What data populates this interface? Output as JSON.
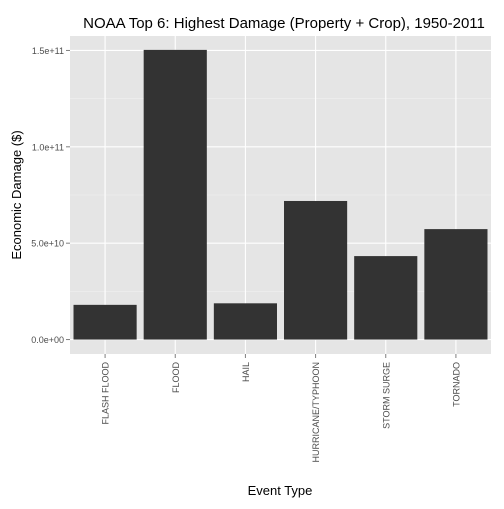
{
  "chart_data": {
    "type": "bar",
    "title": "NOAA Top 6: Highest Damage (Property + Crop), 1950-2011",
    "xlabel": "Event Type",
    "ylabel": "Economic Damage ($)",
    "categories": [
      "FLASH FLOOD",
      "FLOOD",
      "HAIL",
      "HURRICANE/TYPHOON",
      "STORM SURGE",
      "TORNADO"
    ],
    "values": [
      18000000000,
      150300000000,
      18800000000,
      71900000000,
      43300000000,
      57300000000
    ],
    "ylim": [
      -7500000000,
      157500000000
    ],
    "yticks": [
      0,
      50000000000,
      100000000000,
      150000000000
    ],
    "ytick_labels": [
      "0.0e+00",
      "5.0e+10",
      "1.0e+11",
      "1.5e+11"
    ],
    "grid": true,
    "colors": {
      "bar": "#333333",
      "panel": "#e5e5e5",
      "grid_major": "#ffffff",
      "grid_minor": "#f2f2f2",
      "tick_label": "#4d4d4d",
      "text": "#000000"
    }
  }
}
